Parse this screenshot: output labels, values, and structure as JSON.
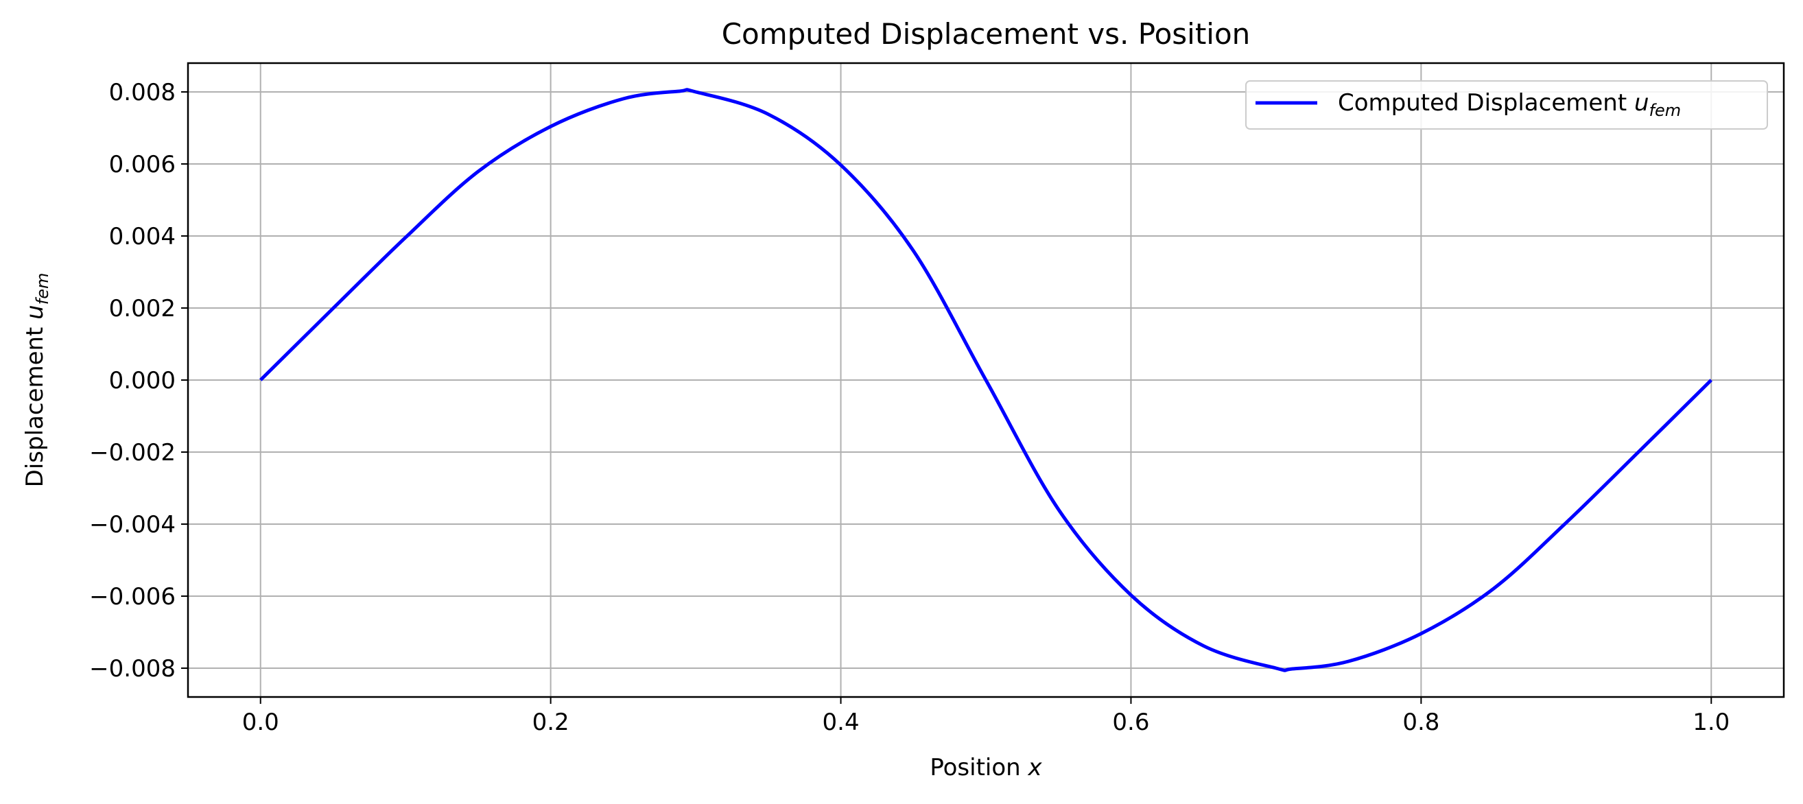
{
  "chart_data": {
    "type": "line",
    "title": "Computed Displacement vs. Position",
    "xlabel": {
      "base": "Position ",
      "var": "x"
    },
    "ylabel": {
      "base": "Displacement ",
      "var": "u",
      "sub": "fem"
    },
    "xlim": [
      -0.05,
      1.05
    ],
    "ylim": [
      -0.0088,
      0.0088
    ],
    "xticks": [
      0.0,
      0.2,
      0.4,
      0.6,
      0.8,
      1.0
    ],
    "xtick_labels": [
      "0.0",
      "0.2",
      "0.4",
      "0.6",
      "0.8",
      "1.0"
    ],
    "yticks": [
      -0.008,
      -0.006,
      -0.004,
      -0.002,
      0.0,
      0.002,
      0.004,
      0.006,
      0.008
    ],
    "ytick_labels": [
      "−0.008",
      "−0.006",
      "−0.004",
      "−0.002",
      "0.000",
      "0.002",
      "0.004",
      "0.006",
      "0.008"
    ],
    "grid": true,
    "legend_position": "top-right",
    "series": [
      {
        "name": {
          "base": "Computed Displacement ",
          "var": "u",
          "sub": "fem"
        },
        "color": "#0000ff",
        "x": [
          0.0,
          0.05,
          0.1,
          0.15,
          0.2,
          0.25,
          0.2887,
          0.3,
          0.35,
          0.4,
          0.45,
          0.5,
          0.55,
          0.6,
          0.65,
          0.7,
          0.7113,
          0.75,
          0.8,
          0.85,
          0.9,
          0.95,
          1.0
        ],
        "y": [
          0.0,
          0.00199,
          0.00396,
          0.00579,
          0.00704,
          0.00781,
          0.00802,
          0.008,
          0.00738,
          0.00597,
          0.00359,
          0.0,
          -0.00359,
          -0.00597,
          -0.00738,
          -0.008,
          -0.00802,
          -0.00781,
          -0.00704,
          -0.00579,
          -0.00396,
          -0.00199,
          0.0
        ]
      }
    ]
  }
}
